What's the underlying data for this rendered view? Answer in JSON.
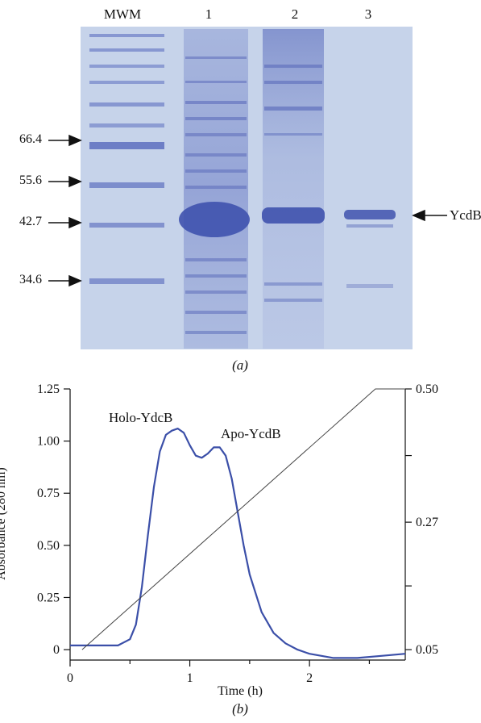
{
  "figure": {
    "panel_a": {
      "caption": "(a)",
      "lane_labels": [
        "MWM",
        "1",
        "2",
        "3"
      ],
      "markers": [
        {
          "label": "66.4"
        },
        {
          "label": "55.6"
        },
        {
          "label": "42.7"
        },
        {
          "label": "34.6"
        }
      ],
      "band_label": "YcdB",
      "gel_color": "#c6d3ea",
      "band_color": "#4a5db8"
    },
    "panel_b": {
      "caption": "(b)",
      "annotations": [
        "Holo-YdcB",
        "Apo-YcdB"
      ]
    }
  },
  "chart_data": {
    "type": "line",
    "title": "",
    "xlabel": "Time (h)",
    "ylabel": "Absorbance (280 nm)",
    "xlim": [
      0,
      2.8
    ],
    "ylim": [
      -0.05,
      1.25
    ],
    "x_ticks": [
      "0",
      "1",
      "2"
    ],
    "y_ticks": [
      "0",
      "0.25",
      "0.50",
      "0.75",
      "1.00",
      "1.25"
    ],
    "y2_ticks": [
      "0.05",
      "0.27",
      "0.50"
    ],
    "y2lim": [
      0.05,
      0.5
    ],
    "series": [
      {
        "axis": "left",
        "color": "#3b4fa8",
        "x": [
          0,
          0.2,
          0.4,
          0.5,
          0.55,
          0.6,
          0.65,
          0.7,
          0.75,
          0.8,
          0.85,
          0.9,
          0.95,
          1.0,
          1.05,
          1.1,
          1.15,
          1.2,
          1.25,
          1.3,
          1.35,
          1.4,
          1.45,
          1.5,
          1.6,
          1.7,
          1.8,
          1.9,
          2.0,
          2.2,
          2.4,
          2.6,
          2.8
        ],
        "y": [
          0.02,
          0.02,
          0.02,
          0.05,
          0.12,
          0.3,
          0.55,
          0.78,
          0.95,
          1.03,
          1.05,
          1.06,
          1.04,
          0.98,
          0.93,
          0.92,
          0.94,
          0.97,
          0.97,
          0.93,
          0.82,
          0.66,
          0.5,
          0.36,
          0.18,
          0.08,
          0.03,
          0.0,
          -0.02,
          -0.04,
          -0.04,
          -0.03,
          -0.02
        ]
      },
      {
        "axis": "right",
        "color": "#444444",
        "x": [
          0.1,
          2.55,
          2.8
        ],
        "y": [
          0.05,
          0.5,
          0.5
        ]
      }
    ]
  }
}
